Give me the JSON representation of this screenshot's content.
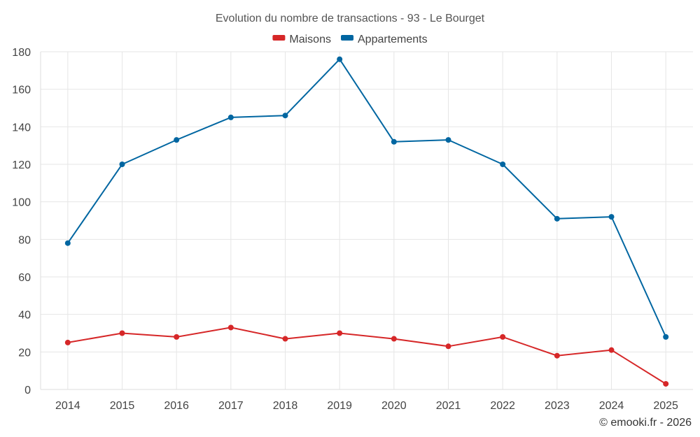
{
  "chart_data": {
    "type": "line",
    "title": "Evolution du nombre de transactions - 93 - Le Bourget",
    "categories": [
      "2014",
      "2015",
      "2016",
      "2017",
      "2018",
      "2019",
      "2020",
      "2021",
      "2022",
      "2023",
      "2024",
      "2025"
    ],
    "series": [
      {
        "name": "Maisons",
        "color": "#d62728",
        "values": [
          25,
          30,
          28,
          33,
          27,
          30,
          27,
          23,
          28,
          18,
          21,
          3
        ]
      },
      {
        "name": "Appartements",
        "color": "#0066a1",
        "values": [
          78,
          120,
          133,
          145,
          146,
          176,
          132,
          133,
          120,
          91,
          92,
          28
        ]
      }
    ],
    "ylim": [
      0,
      180
    ],
    "yticks": [
      "0",
      "20",
      "40",
      "60",
      "80",
      "100",
      "120",
      "140",
      "160",
      "180"
    ],
    "xlabel": "",
    "ylabel": "",
    "grid": true,
    "legend_position": "top-center",
    "credit": "© emooki.fr - 2026"
  }
}
